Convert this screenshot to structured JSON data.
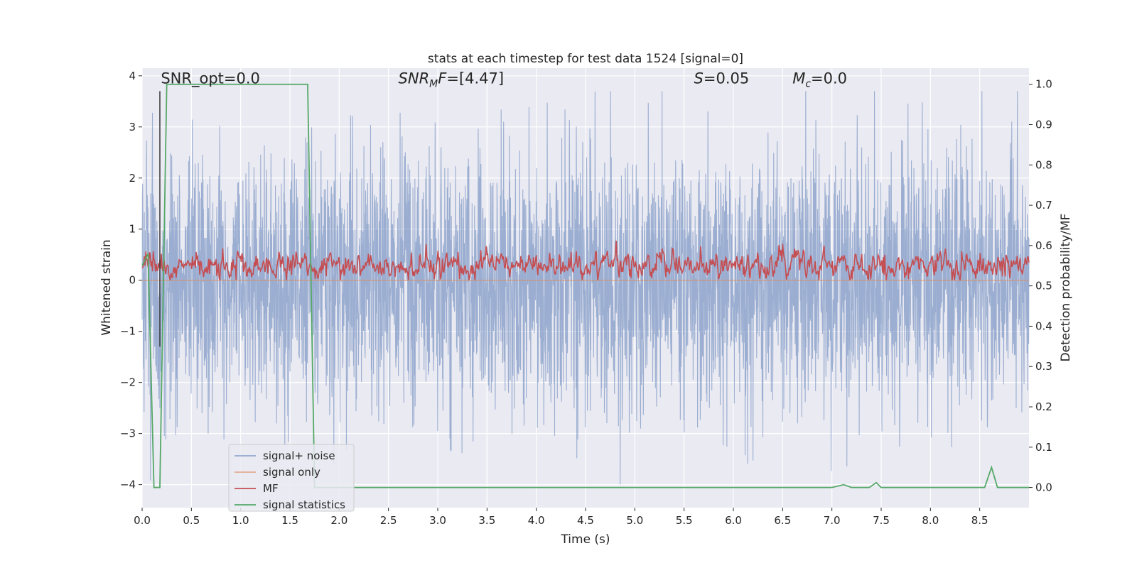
{
  "chart_data": {
    "type": "line",
    "title": "stats at each timestep for test data 1524 [signal=0]",
    "xlabel": "Time (s)",
    "ylabel": "Whitened strain",
    "ylabel_right": "Detection probability/MF",
    "xlim": [
      0,
      9.0
    ],
    "ylim": [
      -4.45,
      4.15
    ],
    "ylim_right": [
      -0.05,
      1.04
    ],
    "x_ticks": [
      0.0,
      0.5,
      1.0,
      1.5,
      2.0,
      2.5,
      3.0,
      3.5,
      4.0,
      4.5,
      5.0,
      5.5,
      6.0,
      6.5,
      7.0,
      7.5,
      8.0,
      8.5
    ],
    "x_tick_labels": [
      "0.0",
      "0.5",
      "1.0",
      "1.5",
      "2.0",
      "2.5",
      "3.0",
      "3.5",
      "4.0",
      "4.5",
      "5.0",
      "5.5",
      "6.0",
      "6.5",
      "7.0",
      "7.5",
      "8.0",
      "8.5"
    ],
    "y_ticks": [
      4,
      3,
      2,
      1,
      0,
      -1,
      -2,
      -3,
      -4
    ],
    "y_tick_labels": [
      "4",
      "3",
      "2",
      "1",
      "0",
      "−1",
      "−2",
      "−3",
      "−4"
    ],
    "y_ticks_right": [
      1.0,
      0.9,
      0.8,
      0.7,
      0.6,
      0.5,
      0.4,
      0.3,
      0.2,
      0.1,
      0.0
    ],
    "y_tick_labels_right": [
      "1.0",
      "0.9",
      "0.8",
      "0.7",
      "0.6",
      "0.5",
      "0.4",
      "0.3",
      "0.2",
      "0.1",
      "0.0"
    ],
    "grid": true,
    "legend_position": "lower-left",
    "series": [
      {
        "name": "signal+ noise",
        "axis": "left",
        "color": "#4c72b0",
        "style": "dense noise, amplitude about ±4",
        "noise_std": 1.0,
        "range": [
          -4.0,
          3.7
        ],
        "samples": 3600
      },
      {
        "name": "signal only",
        "axis": "left",
        "color": "#dd8452",
        "values": [
          0,
          0
        ],
        "x": [
          0,
          9.0
        ]
      },
      {
        "name": "MF",
        "axis": "left",
        "color": "#c44e52",
        "style": "noisy, about 0.3 mean, range 0 to 0.9",
        "mean": 0.3,
        "range": [
          0.0,
          0.9
        ],
        "samples": 1200
      },
      {
        "name": "signal statistics",
        "axis": "right",
        "color": "#55a868",
        "x": [
          0,
          0.06,
          0.12,
          0.18,
          0.25,
          0.31,
          1.68,
          1.75,
          1.82,
          7.0,
          7.12,
          7.2,
          7.38,
          7.45,
          7.5,
          8.55,
          8.62,
          8.68,
          9.0
        ],
        "values": [
          0.55,
          0.58,
          0.0,
          0.0,
          1.0,
          1.0,
          1.0,
          0.0,
          0.0,
          0.0,
          0.007,
          0.0,
          0.0,
          0.012,
          0.0,
          0.0,
          0.05,
          0.0,
          0.0
        ]
      }
    ],
    "vertical_line": {
      "x": 0.18,
      "y_range": [
        -1.3,
        3.7
      ],
      "color": "#3a3a3a"
    },
    "annotations": [
      {
        "text": "SNR_opt=0.0",
        "x": 0.19,
        "y": 3.85
      },
      {
        "text": "SNR",
        "sub": "M",
        "text_after": "F=[4.47]",
        "italic": true,
        "x": 2.6,
        "y": 3.85
      },
      {
        "text": "S",
        "text_after": "=0.05",
        "italic": true,
        "x": 5.6,
        "y": 3.85
      },
      {
        "text": "M",
        "sub": "c",
        "text_after": "=0.0",
        "italic": true,
        "x": 6.6,
        "y": 3.85
      }
    ]
  }
}
